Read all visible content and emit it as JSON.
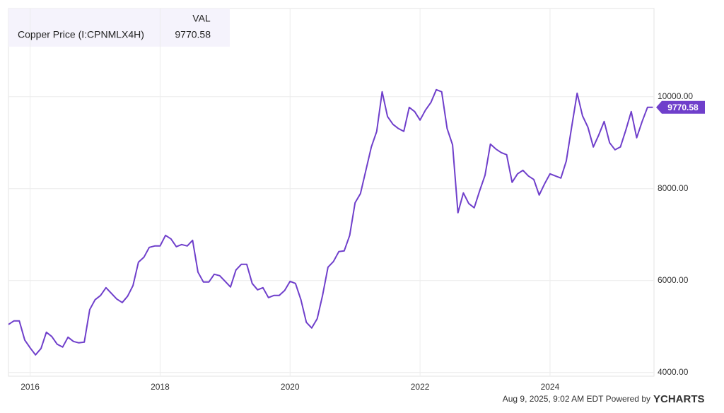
{
  "chart_data": {
    "type": "line",
    "legend_header": "VAL",
    "footer": "Aug 9, 2025, 9:02 AM EDT Powered by",
    "brand": "YCHARTS",
    "x": [
      2015.667,
      2015.75,
      2015.833,
      2015.917,
      2016.0,
      2016.083,
      2016.167,
      2016.25,
      2016.333,
      2016.417,
      2016.5,
      2016.583,
      2016.667,
      2016.75,
      2016.833,
      2016.917,
      2017.0,
      2017.083,
      2017.167,
      2017.25,
      2017.333,
      2017.417,
      2017.5,
      2017.583,
      2017.667,
      2017.75,
      2017.833,
      2017.917,
      2018.0,
      2018.083,
      2018.167,
      2018.25,
      2018.333,
      2018.417,
      2018.5,
      2018.583,
      2018.667,
      2018.75,
      2018.833,
      2018.917,
      2019.0,
      2019.083,
      2019.167,
      2019.25,
      2019.333,
      2019.417,
      2019.5,
      2019.583,
      2019.667,
      2019.75,
      2019.833,
      2019.917,
      2020.0,
      2020.083,
      2020.167,
      2020.25,
      2020.333,
      2020.417,
      2020.5,
      2020.583,
      2020.667,
      2020.75,
      2020.833,
      2020.917,
      2021.0,
      2021.083,
      2021.167,
      2021.25,
      2021.333,
      2021.417,
      2021.5,
      2021.583,
      2021.667,
      2021.75,
      2021.833,
      2021.917,
      2022.0,
      2022.083,
      2022.167,
      2022.25,
      2022.333,
      2022.417,
      2022.5,
      2022.583,
      2022.667,
      2022.75,
      2022.833,
      2022.917,
      2023.0,
      2023.083,
      2023.167,
      2023.25,
      2023.333,
      2023.417,
      2023.5,
      2023.583,
      2023.667,
      2023.75,
      2023.833,
      2023.917,
      2024.0,
      2024.083,
      2024.167,
      2024.25,
      2024.333,
      2024.417,
      2024.5,
      2024.583,
      2024.667,
      2024.75,
      2024.833,
      2024.917,
      2025.0,
      2025.083,
      2025.167,
      2025.25,
      2025.333,
      2025.417,
      2025.5,
      2025.583
    ],
    "series": [
      {
        "name": "Copper Price (I:CPNMLX4H)",
        "color": "#6f3fcb",
        "values": [
          5046,
          5123,
          5123,
          4708,
          4538,
          4385,
          4523,
          4877,
          4785,
          4615,
          4554,
          4769,
          4677,
          4646,
          4662,
          5369,
          5585,
          5677,
          5846,
          5723,
          5600,
          5523,
          5662,
          5892,
          6400,
          6508,
          6723,
          6754,
          6754,
          6985,
          6908,
          6738,
          6785,
          6754,
          6877,
          6185,
          5969,
          5969,
          6138,
          6108,
          5985,
          5862,
          6231,
          6354,
          6354,
          5938,
          5800,
          5846,
          5631,
          5677,
          5677,
          5785,
          5985,
          5938,
          5585,
          5092,
          4969,
          5169,
          5677,
          6292,
          6415,
          6631,
          6646,
          6985,
          7692,
          7892,
          8400,
          8908,
          9246,
          10108,
          9569,
          9400,
          9308,
          9246,
          9769,
          9677,
          9492,
          9708,
          9877,
          10154,
          10108,
          9308,
          8954,
          7477,
          7908,
          7677,
          7585,
          7954,
          8292,
          8969,
          8862,
          8785,
          8738,
          8138,
          8323,
          8400,
          8277,
          8200,
          7862,
          8108,
          8323,
          8277,
          8231,
          8600,
          9338,
          10077,
          9585,
          9338,
          8908,
          9169,
          9462,
          9000,
          8846,
          8908,
          9277,
          9677,
          9108,
          9462,
          9769,
          9770.58
        ]
      }
    ],
    "xlim": [
      2015.667,
      2025.6
    ],
    "xticks": [
      2016,
      2018,
      2020,
      2022,
      2024
    ],
    "ylim": [
      3920,
      11920
    ],
    "yticks": [
      {
        "value": 4000,
        "label": "4000.00"
      },
      {
        "value": 6000,
        "label": "6000.00"
      },
      {
        "value": 8000,
        "label": "8000.00"
      },
      {
        "value": 10000,
        "label": "10000.00"
      }
    ],
    "grid": true
  }
}
